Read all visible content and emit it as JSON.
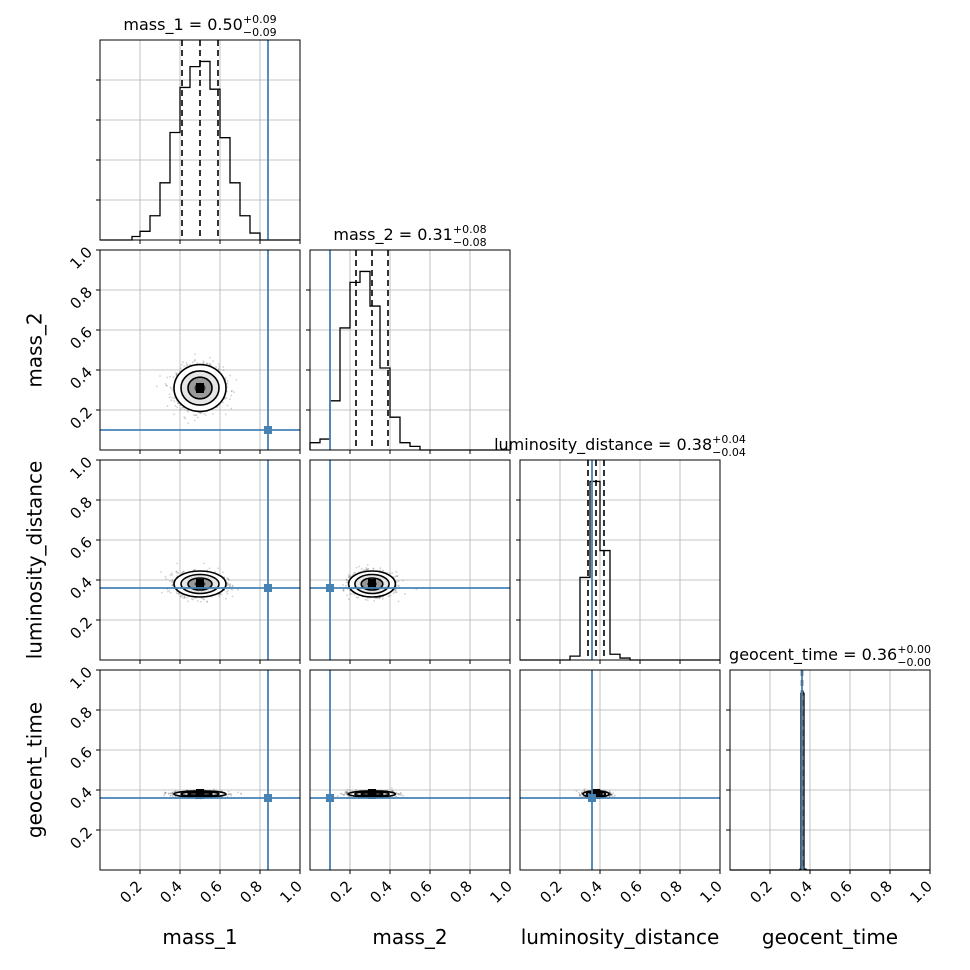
{
  "chart_data": {
    "type": "corner",
    "parameters": [
      "mass_1",
      "mass_2",
      "luminosity_distance",
      "geocent_time"
    ],
    "axis_labels": [
      "mass_1",
      "mass_2",
      "luminosity_distance",
      "geocent_time"
    ],
    "titles": [
      {
        "param": "mass_1",
        "median": "0.50",
        "plus": "+0.09",
        "minus": "−0.09"
      },
      {
        "param": "mass_2",
        "median": "0.31",
        "plus": "+0.08",
        "minus": "−0.08"
      },
      {
        "param": "luminosity_distance",
        "median": "0.38",
        "plus": "+0.04",
        "minus": "−0.04"
      },
      {
        "param": "geocent_time",
        "median": "0.36",
        "plus": "+0.00",
        "minus": "−0.00"
      }
    ],
    "ticks": [
      0.2,
      0.4,
      0.6,
      0.8,
      1.0
    ],
    "tick_labels": [
      "0.2",
      "0.4",
      "0.6",
      "0.8",
      "1.0"
    ],
    "axis_range": [
      0,
      1
    ],
    "grid": true,
    "truths": [
      0.84,
      0.1,
      0.36,
      0.36
    ],
    "truth_color": "#4682b4",
    "line_color": "#000000",
    "quantile_lines": [
      [
        0.41,
        0.5,
        0.59
      ],
      [
        0.23,
        0.31,
        0.39
      ],
      [
        0.34,
        0.38,
        0.42
      ],
      [
        0.358,
        0.36,
        0.362
      ]
    ],
    "histograms": [
      {
        "edges": [
          0.16,
          0.2,
          0.25,
          0.3,
          0.35,
          0.4,
          0.45,
          0.5,
          0.55,
          0.6,
          0.65,
          0.7,
          0.75,
          0.8
        ],
        "counts": [
          0.02,
          0.05,
          0.14,
          0.33,
          0.62,
          0.88,
          1.0,
          1.03,
          0.87,
          0.59,
          0.33,
          0.14,
          0.04
        ]
      },
      {
        "edges": [
          0.0,
          0.05,
          0.1,
          0.15,
          0.2,
          0.25,
          0.3,
          0.35,
          0.4,
          0.45,
          0.5,
          0.55
        ],
        "counts": [
          0.04,
          0.06,
          0.27,
          0.67,
          0.92,
          0.98,
          0.79,
          0.45,
          0.18,
          0.04,
          0.02
        ]
      },
      {
        "edges": [
          0.25,
          0.3,
          0.35,
          0.4,
          0.45,
          0.5,
          0.55
        ],
        "counts": [
          0.02,
          0.43,
          0.93,
          0.57,
          0.03,
          0.01
        ]
      },
      {
        "edges": [
          0.35,
          0.355,
          0.36,
          0.365,
          0.37,
          0.38
        ],
        "counts": [
          0.005,
          0.98,
          0.99,
          0.98,
          0.005
        ]
      }
    ],
    "posterior_means": [
      0.5,
      0.31,
      0.38,
      0.38
    ],
    "posterior_sigmas": [
      0.05,
      0.045,
      0.025,
      0.006
    ]
  }
}
